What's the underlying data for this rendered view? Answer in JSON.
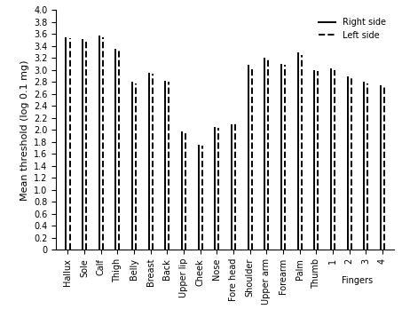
{
  "chart_data": {
    "type": "bar",
    "y_label": "Mean threshold (log 0.1 mg)",
    "categories": [
      "Hallux",
      "Sole",
      "Calf",
      "Thigh",
      "Belly",
      "Breast",
      "Back",
      "Upper lip",
      "Cheek",
      "Nose",
      "Fore head",
      "Shoulder",
      "Upper arm",
      "Forearm",
      "Palm",
      "Thumb",
      "1",
      "2",
      "3",
      "4"
    ],
    "series": [
      {
        "name": "Right side",
        "color": "#000000",
        "line_style": "solid",
        "values": [
          3.55,
          3.52,
          3.57,
          3.35,
          2.8,
          2.95,
          2.82,
          1.97,
          1.75,
          2.05,
          2.1,
          3.08,
          3.2,
          3.1,
          3.3,
          3.0,
          3.02,
          2.9,
          2.8,
          2.75
        ]
      },
      {
        "name": "Left side",
        "color": "#000000",
        "line_style": "dashed",
        "values": [
          3.53,
          3.5,
          3.55,
          3.33,
          2.78,
          2.93,
          2.8,
          1.95,
          1.73,
          2.03,
          2.12,
          3.05,
          3.17,
          3.08,
          3.25,
          2.98,
          3.0,
          2.88,
          2.78,
          2.73
        ]
      }
    ],
    "annotations": [
      {
        "text": "Fingers",
        "categories": [
          "1",
          "2",
          "3",
          "4"
        ]
      }
    ],
    "ylim": [
      0,
      4.0
    ],
    "yticks": [
      0,
      0.2,
      0.4,
      0.6,
      0.8,
      1.0,
      1.2,
      1.4,
      1.6,
      1.8,
      2.0,
      2.2,
      2.4,
      2.6,
      2.8,
      3.0,
      3.2,
      3.4,
      3.6,
      3.8,
      4.0
    ],
    "legend": "upper right",
    "grid": false
  }
}
